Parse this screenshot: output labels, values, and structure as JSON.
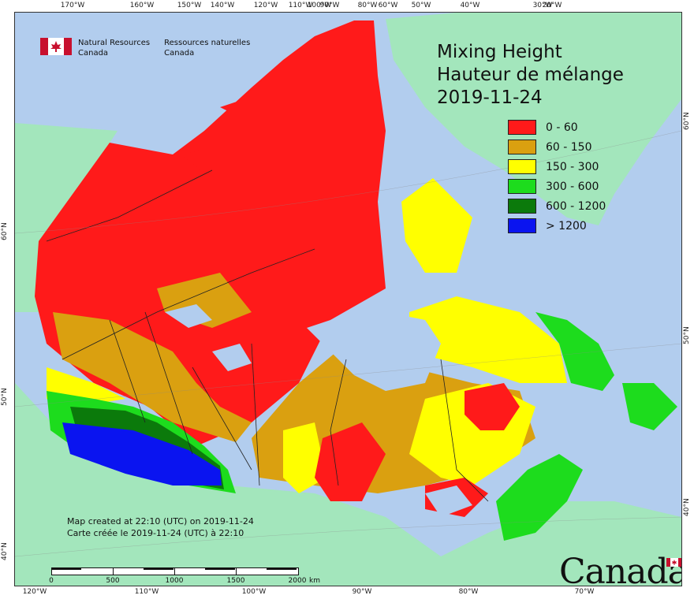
{
  "title": {
    "line1": "Mixing Height",
    "line2": "Hauteur de mélange",
    "date": "2019-11-24"
  },
  "agency": {
    "en_line1": "Natural Resources",
    "en_line2": "Canada",
    "fr_line1": "Ressources naturelles",
    "fr_line2": "Canada"
  },
  "legend": [
    {
      "label": "0 - 60",
      "color": "#ff1a1a"
    },
    {
      "label": "60 - 150",
      "color": "#daa010"
    },
    {
      "label": "150 - 300",
      "color": "#ffff00"
    },
    {
      "label": "300 - 600",
      "color": "#1ddc1d"
    },
    {
      "label": "600 - 1200",
      "color": "#0b7a0b"
    },
    {
      "label": "> 1200",
      "color": "#0a14f0"
    }
  ],
  "credit": {
    "line1": "Map created at 22:10 (UTC) on 2019-11-24",
    "line2": "Carte créée le 2019-11-24 (UTC) à 22:10"
  },
  "scale": {
    "labels": [
      "0",
      "500",
      "1000",
      "1500",
      "2000"
    ],
    "unit": "km"
  },
  "wordmark": "Canada",
  "graticule": {
    "top": [
      "170°W",
      "160°W",
      "150°W",
      "140°W",
      "120°W",
      "110°W",
      "100°W",
      "90°W",
      "80°W",
      "60°W",
      "50°W",
      "40°W",
      "30°W",
      "20°W"
    ],
    "bottom": [
      "120°W",
      "110°W",
      "100°W",
      "90°W",
      "80°W",
      "70°W"
    ],
    "left": [
      "60°N",
      "50°N",
      "40°N"
    ],
    "right": [
      "60°N",
      "50°N",
      "40°N"
    ]
  },
  "colors": {
    "ocean": "#b2cdee",
    "land_outside": "#a3e6bc",
    "border": "#222222"
  }
}
